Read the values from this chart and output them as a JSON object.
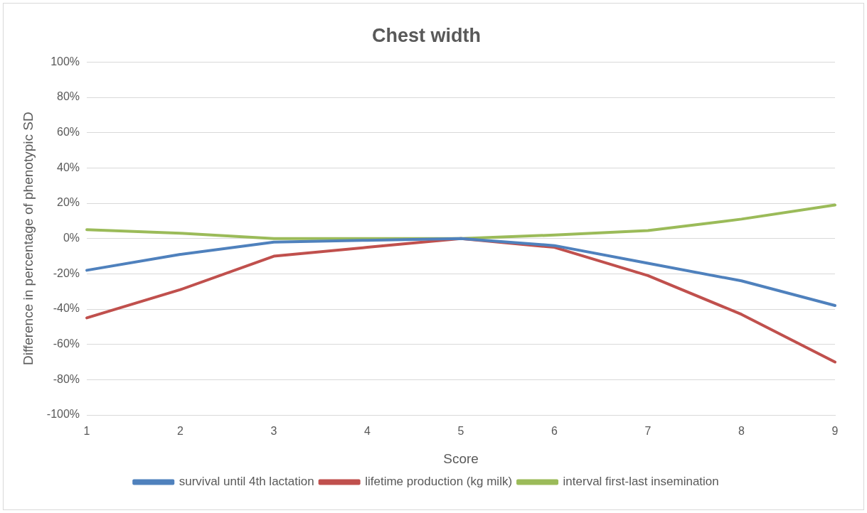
{
  "chart_data": {
    "type": "line",
    "title": "Chest width",
    "xlabel": "Score",
    "ylabel": "Difference in percentage of phenotypic SD",
    "categories": [
      "1",
      "2",
      "3",
      "4",
      "5",
      "6",
      "7",
      "8",
      "9"
    ],
    "series": [
      {
        "name": "survival until 4th lactation",
        "color": "#4f81bd",
        "values": [
          -18,
          -9,
          -2,
          -1,
          0,
          -4,
          -14,
          -24,
          -38
        ]
      },
      {
        "name": "lifetime production (kg milk)",
        "color": "#c0504d",
        "values": [
          -45,
          -29,
          -10,
          -5,
          0,
          -5,
          -21,
          -43,
          -70
        ]
      },
      {
        "name": "interval first-last insemination",
        "color": "#9bbb59",
        "values": [
          5,
          3,
          0,
          0,
          0,
          2,
          4.5,
          11,
          19
        ]
      }
    ],
    "ylim": [
      -100,
      100
    ],
    "yticks": [
      {
        "value": -100,
        "label": "-100%"
      },
      {
        "value": -80,
        "label": "-80%"
      },
      {
        "value": -60,
        "label": "-60%"
      },
      {
        "value": -40,
        "label": "-40%"
      },
      {
        "value": -20,
        "label": "-20%"
      },
      {
        "value": 0,
        "label": "0%"
      },
      {
        "value": 20,
        "label": "20%"
      },
      {
        "value": 40,
        "label": "40%"
      },
      {
        "value": 60,
        "label": "60%"
      },
      {
        "value": 80,
        "label": "80%"
      },
      {
        "value": 100,
        "label": "100%"
      }
    ],
    "grid": "y",
    "legend": "bottom",
    "marker": "none",
    "line_style": "solid"
  }
}
